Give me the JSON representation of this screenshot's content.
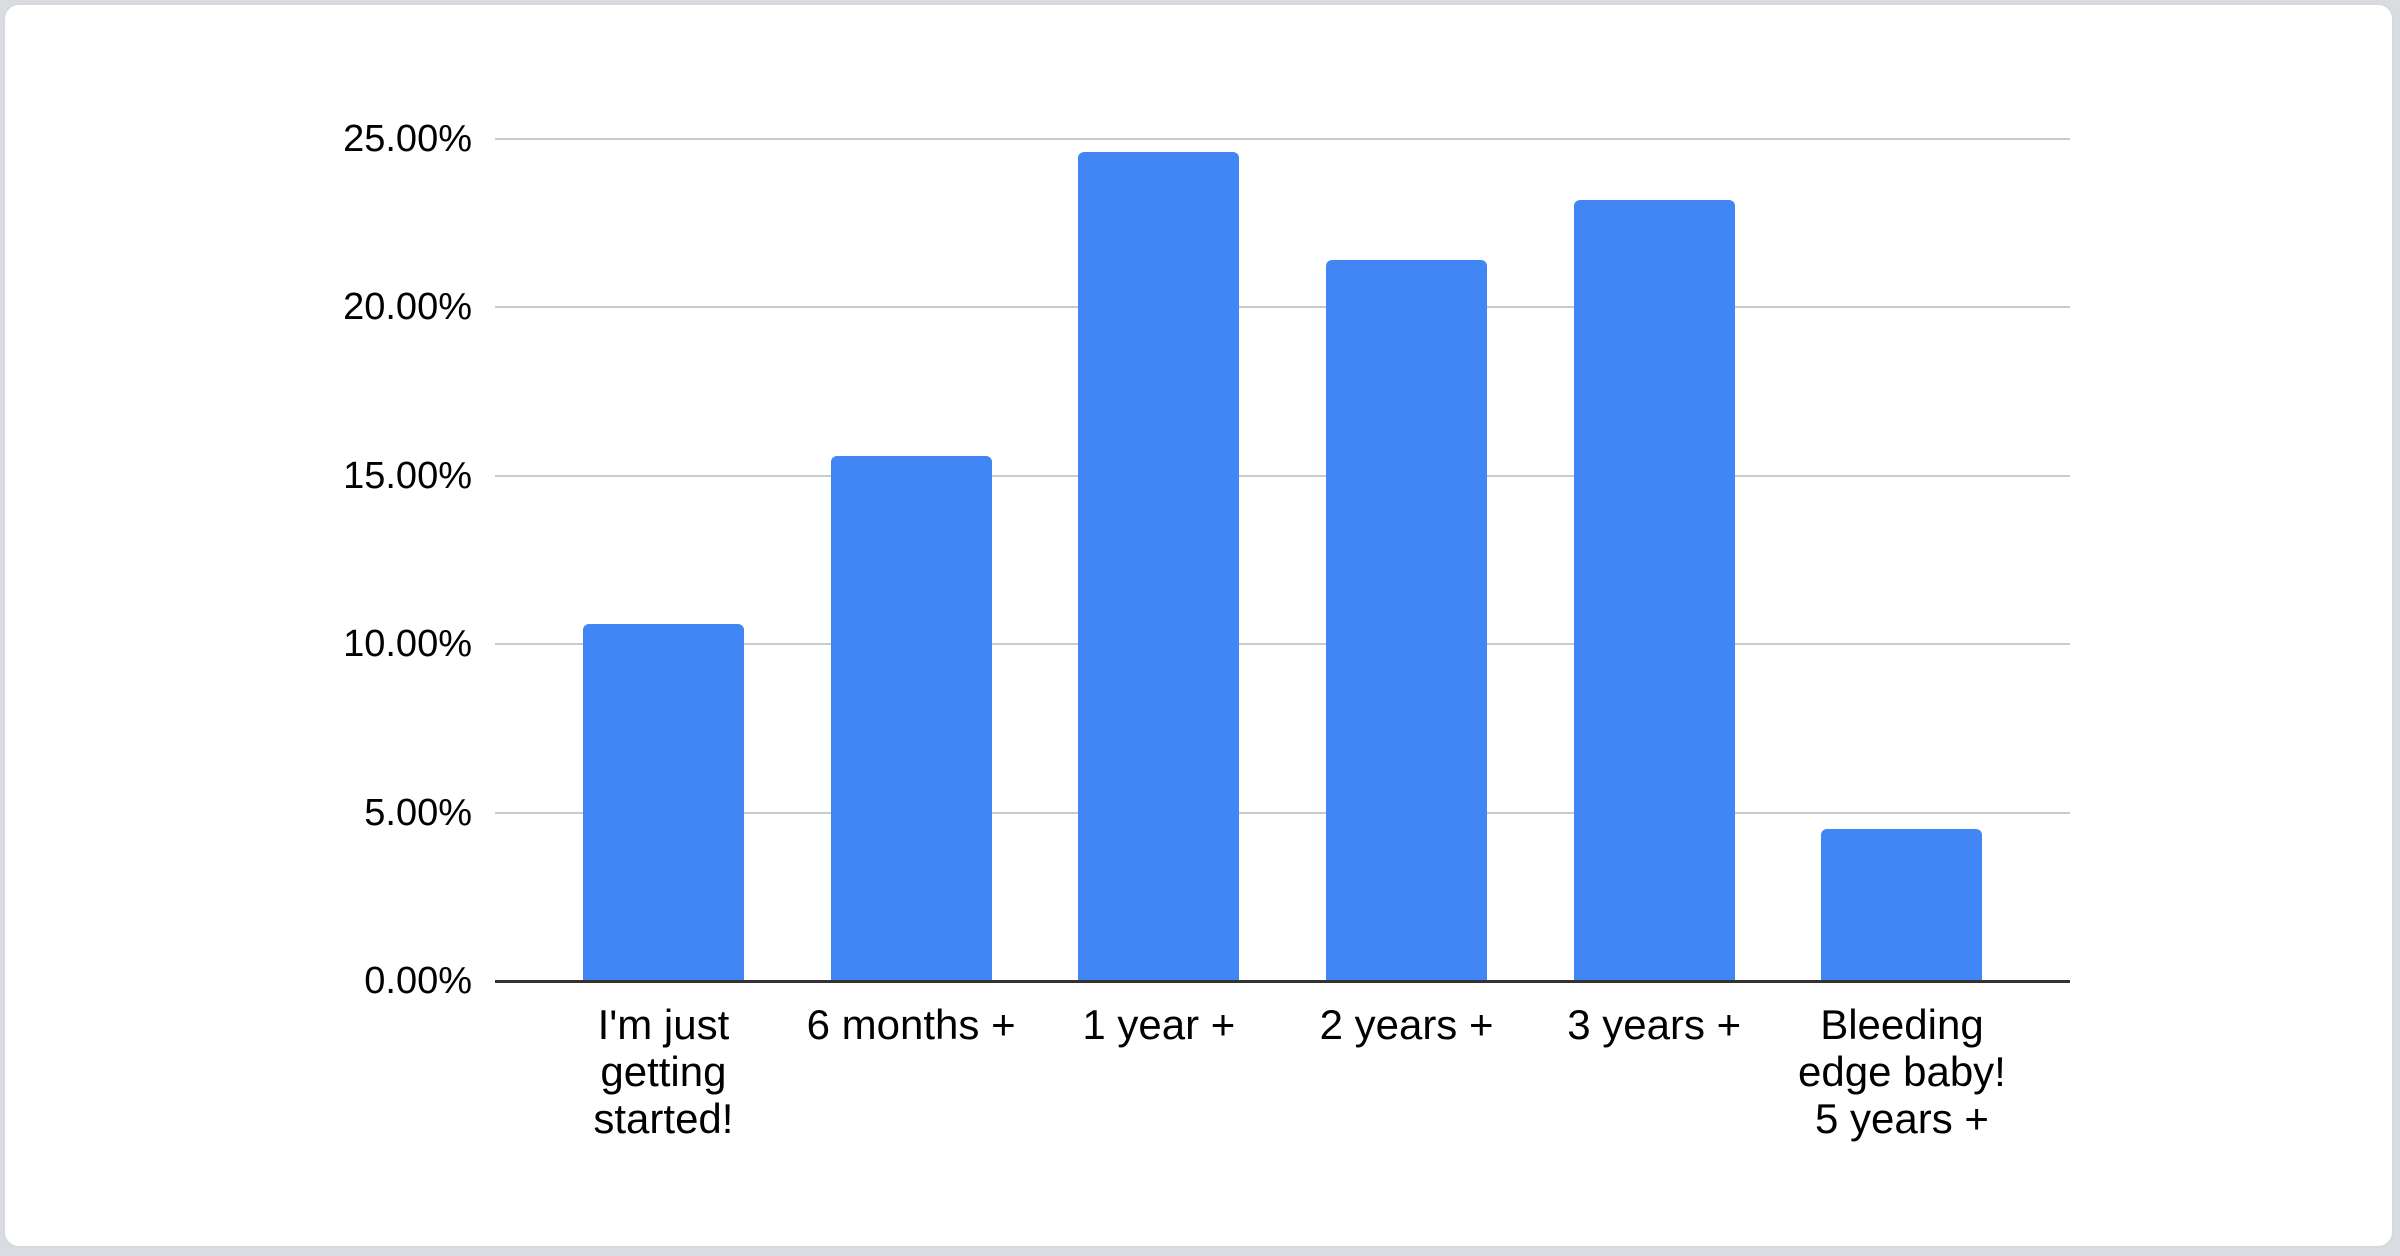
{
  "page": {
    "background": "#d9dde1",
    "card_background": "#ffffff",
    "card_border": "#d6dadd"
  },
  "chart_data": {
    "type": "bar",
    "title": "",
    "xlabel": "",
    "ylabel": "",
    "categories": [
      "I'm just getting started!",
      "6 months +",
      "1 year +",
      "2 years +",
      "3 years +",
      "Bleeding edge baby! 5 years +"
    ],
    "label_lines": [
      [
        "I'm just",
        "getting",
        "started!"
      ],
      [
        "6 months +"
      ],
      [
        "1 year +"
      ],
      [
        "2 years +"
      ],
      [
        "3 years +"
      ],
      [
        "Bleeding",
        "edge baby!",
        "5 years +"
      ]
    ],
    "values": [
      10.6,
      15.6,
      24.6,
      21.4,
      23.2,
      4.5
    ],
    "unit": "%",
    "ylim": [
      0,
      25
    ],
    "y_tick_values": [
      0,
      5,
      10,
      15,
      20,
      25
    ],
    "y_ticks": [
      "0.00%",
      "5.00%",
      "10.00%",
      "15.00%",
      "20.00%",
      "25.00%"
    ],
    "grid": true,
    "legend": "none",
    "bar_color": "#4285f4",
    "gridline_color": "#cbcbcb",
    "axis_line_color": "#333333",
    "label_color": "#000000"
  }
}
